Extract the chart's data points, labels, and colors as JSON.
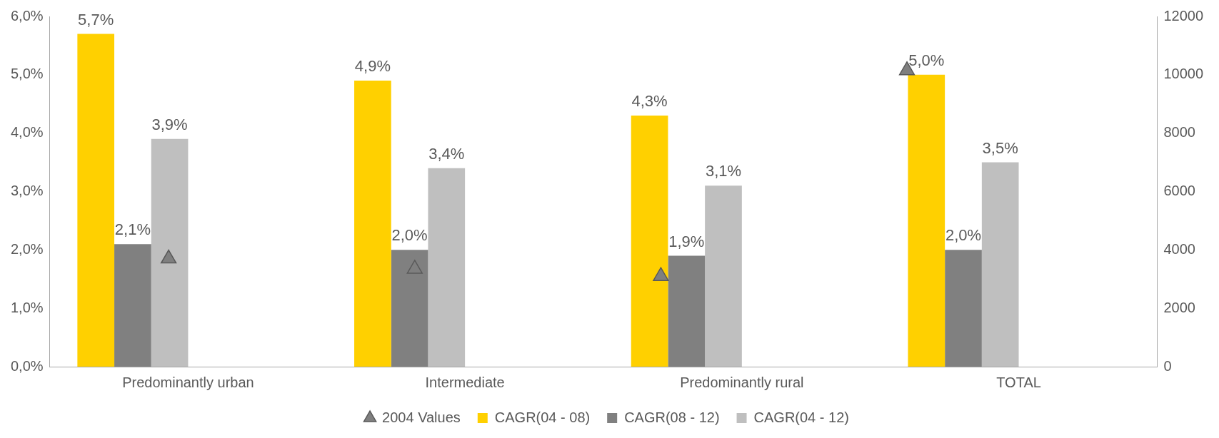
{
  "chart_data": {
    "type": "bar",
    "categories": [
      "Predominantly urban",
      "Intermediate",
      "Predominantly rural",
      "TOTAL"
    ],
    "series": [
      {
        "name": "CAGR(04 - 08)",
        "color": "#ffd000",
        "values": [
          5.7,
          4.9,
          4.3,
          5.0
        ],
        "value_labels": [
          "5,7%",
          "4,9%",
          "4,3%",
          "5,0%"
        ]
      },
      {
        "name": "CAGR(08 - 12)",
        "color": "#808080",
        "values": [
          2.1,
          2.0,
          1.9,
          2.0
        ],
        "value_labels": [
          "2,1%",
          "2,0%",
          "1,9%",
          "2,0%"
        ]
      },
      {
        "name": "CAGR(04 - 12)",
        "color": "#bfbfbf",
        "values": [
          3.9,
          3.4,
          3.1,
          3.5
        ],
        "value_labels": [
          "3,9%",
          "3,4%",
          "3,1%",
          "3,5%"
        ]
      },
      {
        "name": "2004 Values",
        "type": "scatter",
        "axis": "y2",
        "color": "#7f7f7f",
        "marker": "triangle",
        "values": [
          3700,
          3350,
          3100,
          10150
        ]
      }
    ],
    "ylim": [
      0,
      6
    ],
    "yticks": [
      {
        "value": 0,
        "label": "0,0%"
      },
      {
        "value": 1,
        "label": "1,0%"
      },
      {
        "value": 2,
        "label": "2,0%"
      },
      {
        "value": 3,
        "label": "3,0%"
      },
      {
        "value": 4,
        "label": "4,0%"
      },
      {
        "value": 5,
        "label": "5,0%"
      },
      {
        "value": 6,
        "label": "6,0%"
      }
    ],
    "y2lim": [
      0,
      12000
    ],
    "y2ticks": [
      0,
      2000,
      4000,
      6000,
      8000,
      10000,
      12000
    ],
    "grid": false,
    "legend": "bottom"
  }
}
